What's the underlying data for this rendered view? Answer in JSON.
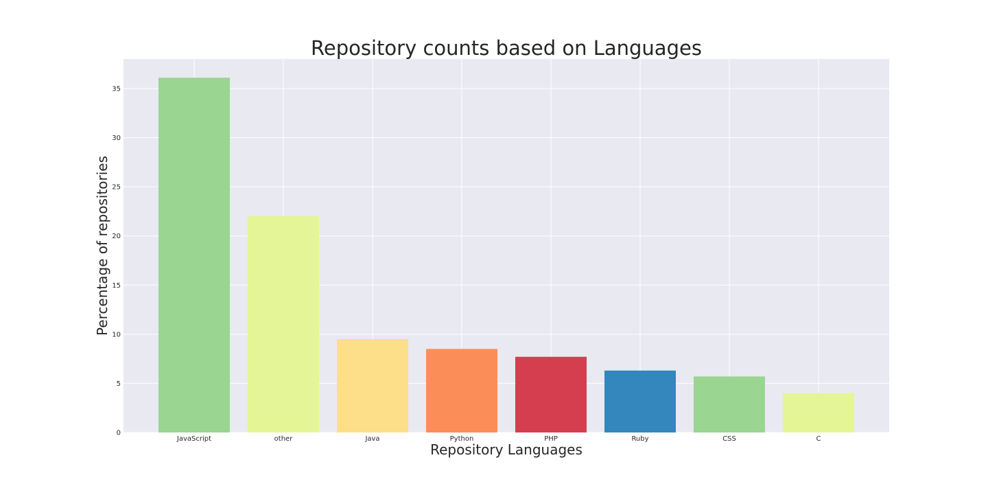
{
  "chart_data": {
    "type": "bar",
    "title": "Repository counts based on Languages",
    "xlabel": "Repository Languages",
    "ylabel": "Percentage of repositories",
    "categories": [
      "JavaScript",
      "other",
      "Java",
      "Python",
      "PHP",
      "Ruby",
      "CSS",
      "C"
    ],
    "values": [
      36.1,
      22.0,
      9.5,
      8.5,
      7.7,
      6.3,
      5.7,
      4.0
    ],
    "ylim": [
      0,
      38
    ],
    "yticks": [
      0,
      5,
      10,
      15,
      20,
      25,
      30,
      35
    ],
    "grid": true,
    "legend": "none",
    "colors": {
      "plot_background": "#e9e9f1",
      "grid": "#ffffff",
      "bars": [
        "#9ad592",
        "#e4f598",
        "#fdde89",
        "#fb8e58",
        "#d53e4f",
        "#3387bc",
        "#9ad592",
        "#e4f598"
      ]
    }
  }
}
